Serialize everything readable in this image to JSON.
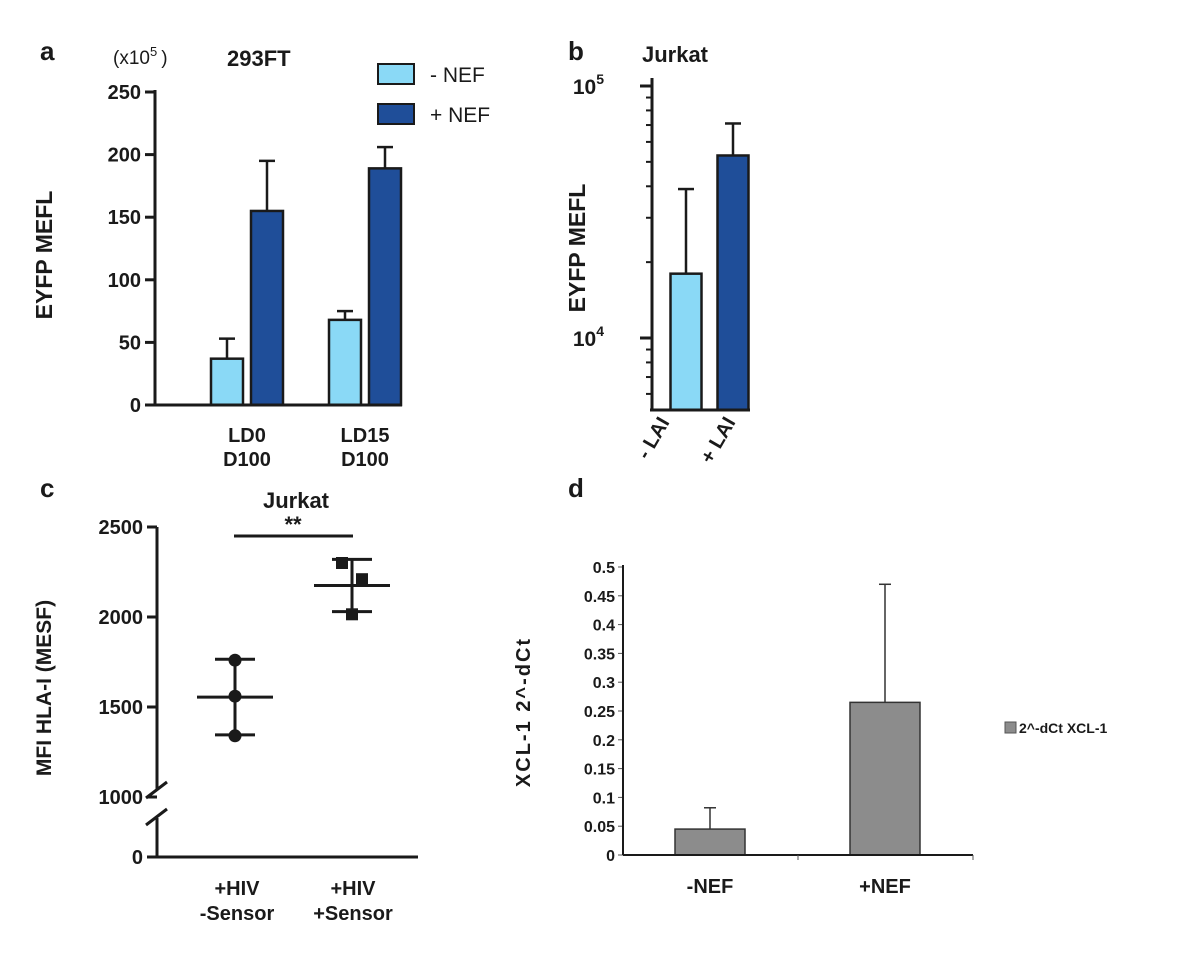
{
  "colors": {
    "light_blue": "#8AD9F6",
    "dark_blue": "#1F4E99",
    "gray": "#8C8C8C",
    "black": "#1a1a1a"
  },
  "chart_data": [
    {
      "panel": "a",
      "type": "bar",
      "title": "293FT",
      "unit_label": "(x10",
      "unit_exp": "5",
      "unit_close": ")",
      "ylabel": "EYFP MEFL",
      "ylim": [
        0,
        250
      ],
      "yticks": [
        0,
        50,
        100,
        150,
        200,
        250
      ],
      "categories": [
        [
          "LD0",
          "D100"
        ],
        [
          "LD15",
          "D100"
        ]
      ],
      "legend": [
        "- NEF",
        "+ NEF"
      ],
      "series": [
        {
          "name": "- NEF",
          "color": "#8AD9F6",
          "values": [
            37,
            68
          ],
          "errors": [
            16,
            7
          ]
        },
        {
          "name": "+ NEF",
          "color": "#1F4E99",
          "values": [
            155,
            189
          ],
          "errors": [
            40,
            17
          ]
        }
      ]
    },
    {
      "panel": "b",
      "type": "bar",
      "scale": "log",
      "title": "Jurkat",
      "ylabel": "EYFP MEFL",
      "ylim": [
        5500,
        100000
      ],
      "yticks": [
        {
          "value": 10000,
          "base": "10",
          "exp": "4"
        },
        {
          "value": 100000,
          "base": "10",
          "exp": "5"
        }
      ],
      "categories": [
        "- LAI",
        "+ LAI"
      ],
      "values": [
        18000,
        53000
      ],
      "errors": [
        21000,
        18000
      ],
      "colors": [
        "#8AD9F6",
        "#1F4E99"
      ]
    },
    {
      "panel": "c",
      "type": "scatter",
      "title": "Jurkat",
      "ylabel": "MFI HLA-I (MESF)",
      "yticks": [
        0,
        1000,
        1500,
        2000,
        2500
      ],
      "axis_break": [
        0,
        1000
      ],
      "categories": [
        [
          "+HIV",
          "-Sensor"
        ],
        [
          "+HIV",
          "+Sensor"
        ]
      ],
      "groups": [
        {
          "marker": "circle",
          "points": [
            1760,
            1560,
            1340
          ],
          "mean": 1555,
          "sd_low": 1345,
          "sd_high": 1765
        },
        {
          "marker": "square",
          "points": [
            2300,
            2210,
            2015
          ],
          "mean": 2175,
          "sd_low": 2030,
          "sd_high": 2320
        }
      ],
      "significance": "**"
    },
    {
      "panel": "d",
      "type": "bar",
      "ylabel": "XCL-1  2^-dCt",
      "ylim": [
        0,
        0.5
      ],
      "yticks": [
        "0",
        "0.05",
        "0.1",
        "0.15",
        "0.2",
        "0.25",
        "0.3",
        "0.35",
        "0.4",
        "0.45",
        "0.5"
      ],
      "categories": [
        "-NEF",
        "+NEF"
      ],
      "values": [
        0.045,
        0.265
      ],
      "errors": [
        0.037,
        0.205
      ],
      "legend": [
        "2^-dCt XCL-1"
      ]
    }
  ],
  "panel_labels": {
    "a": "a",
    "b": "b",
    "c": "c",
    "d": "d"
  }
}
